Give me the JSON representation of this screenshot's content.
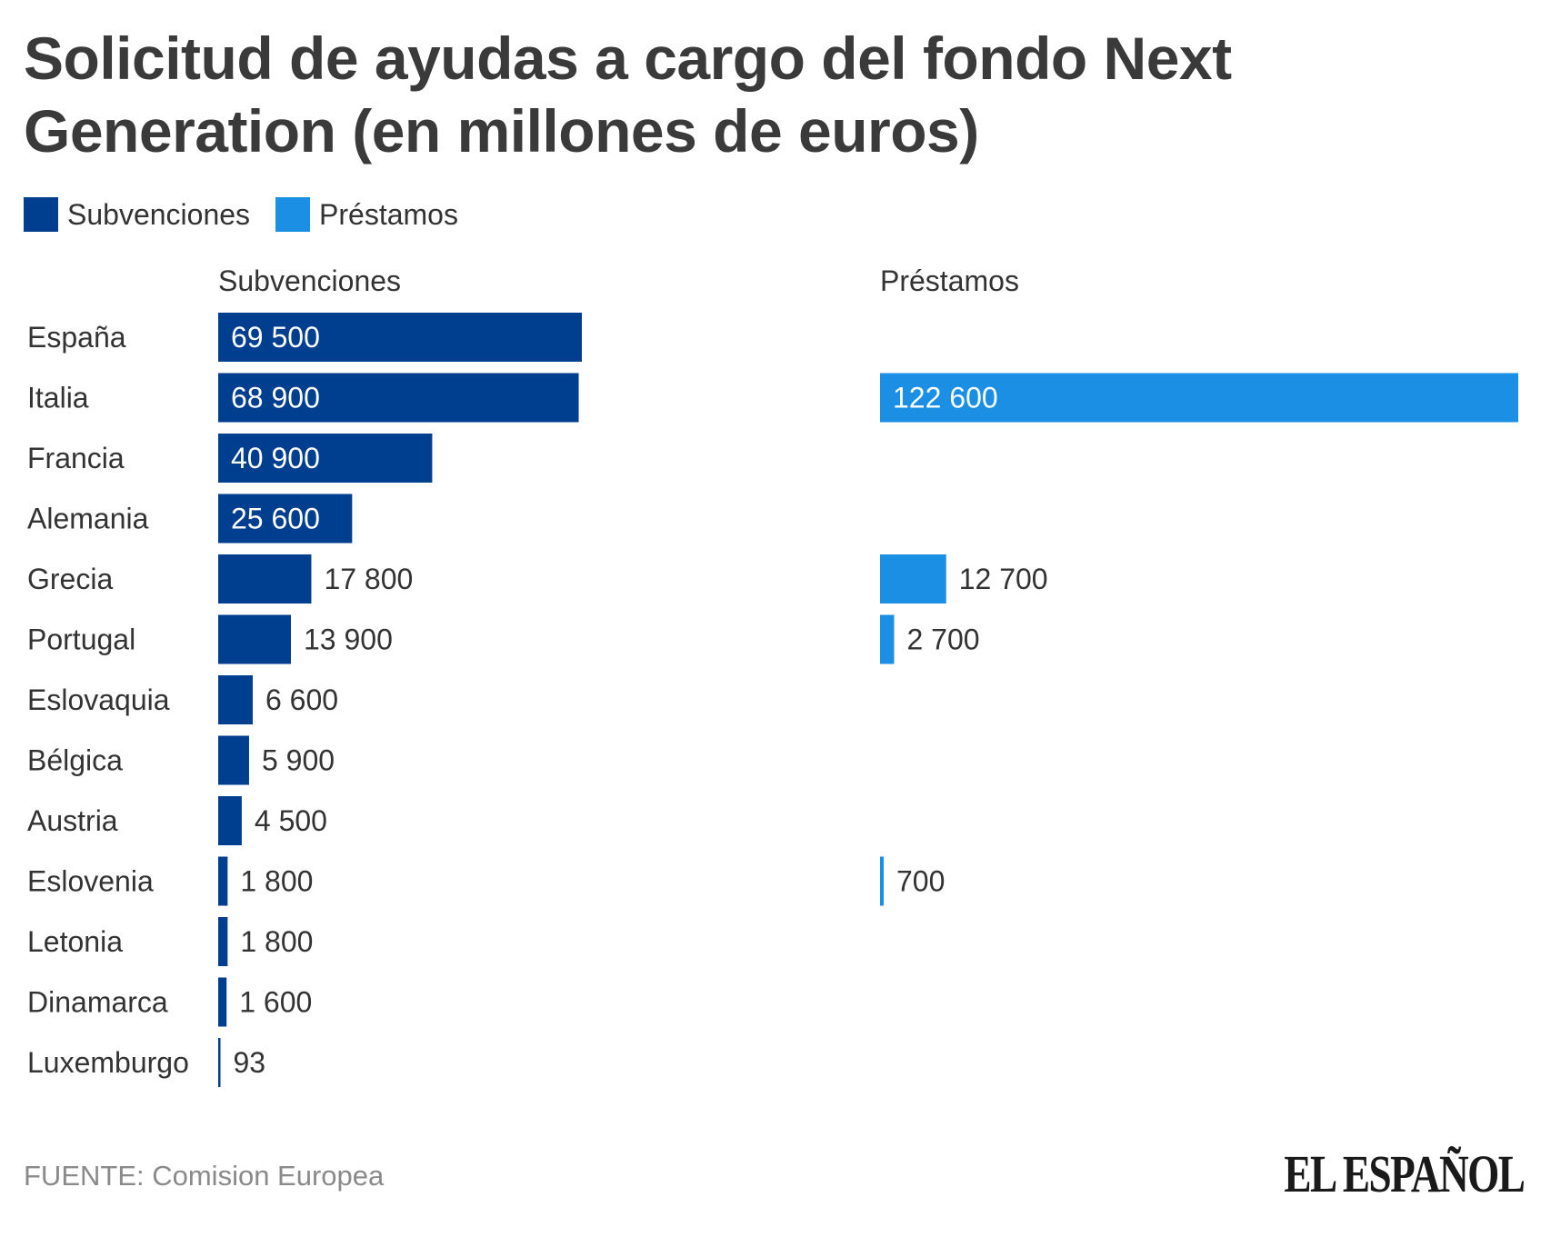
{
  "chart_data": {
    "type": "bar",
    "title": "Solicitud de ayudas a cargo del fondo Next Generation (en millones de euros)",
    "categories": [
      "España",
      "Italia",
      "Francia",
      "Alemania",
      "Grecia",
      "Portugal",
      "Eslovaquia",
      "Bélgica",
      "Austria",
      "Eslovenia",
      "Letonia",
      "Dinamarca",
      "Luxemburgo"
    ],
    "series": [
      {
        "name": "Subvenciones",
        "color": "#003e8f",
        "values": [
          69500,
          68900,
          40900,
          25600,
          17800,
          13900,
          6600,
          5900,
          4500,
          1800,
          1800,
          1600,
          93
        ],
        "labels": [
          "69 500",
          "68 900",
          "40 900",
          "25 600",
          "17 800",
          "13 900",
          "6 600",
          "5 900",
          "4 500",
          "1 800",
          "1 800",
          "1 600",
          "93"
        ]
      },
      {
        "name": "Préstamos",
        "color": "#1a8fe3",
        "values": [
          null,
          122600,
          null,
          null,
          12700,
          2700,
          null,
          null,
          null,
          700,
          null,
          null,
          null
        ],
        "labels": [
          null,
          "122 600",
          null,
          null,
          "12 700",
          "2 700",
          null,
          null,
          null,
          "700",
          null,
          null,
          null
        ]
      }
    ],
    "legend": {
      "placement": "top-left",
      "items": [
        "Subvenciones",
        "Préstamos"
      ]
    },
    "panel_headers": [
      "Subvenciones",
      "Préstamos"
    ],
    "grid": false
  },
  "source": "FUENTE: Comision Europea",
  "brand": "EL ESPAÑOL"
}
